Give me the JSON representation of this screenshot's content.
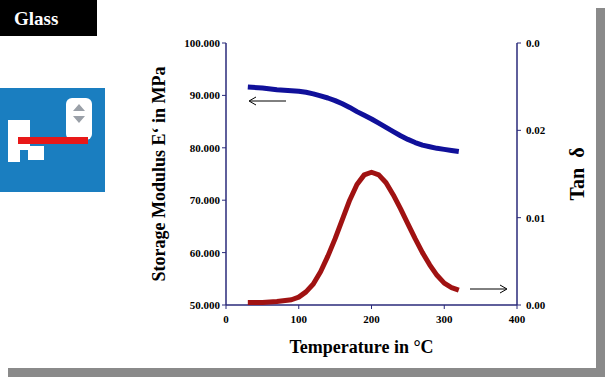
{
  "chart_data": {
    "type": "line",
    "title": "Glass",
    "xlabel": "Temperature in °C",
    "ylabel": "Storage Modulus E‘ in MPa",
    "y2label": "Tan  δ",
    "x": [
      30,
      50,
      70,
      90,
      100,
      110,
      120,
      130,
      140,
      150,
      160,
      170,
      180,
      190,
      200,
      210,
      220,
      230,
      240,
      250,
      260,
      270,
      280,
      290,
      300,
      310,
      320
    ],
    "series": [
      {
        "color": "#10109a",
        "axis": "y",
        "line_style": "solid",
        "values": [
          91600,
          91400,
          91100,
          90900,
          90800,
          90600,
          90300,
          89900,
          89500,
          89000,
          88400,
          87700,
          86900,
          86200,
          85500,
          84700,
          83900,
          83100,
          82300,
          81600,
          81000,
          80500,
          80200,
          79900,
          79700,
          79500,
          79300
        ]
      },
      {
        "color": "#a01212",
        "axis": "y2",
        "line_style": "solid",
        "values": [
          0.0003,
          0.0003,
          0.0004,
          0.0006,
          0.0009,
          0.0015,
          0.0024,
          0.0038,
          0.0056,
          0.0076,
          0.0098,
          0.012,
          0.0138,
          0.0149,
          0.0152,
          0.0149,
          0.014,
          0.0126,
          0.011,
          0.0093,
          0.0076,
          0.006,
          0.0046,
          0.0034,
          0.0025,
          0.002,
          0.0017
        ]
      }
    ],
    "xlim": [
      0,
      400
    ],
    "xticks": [
      0,
      100,
      200,
      300,
      400
    ],
    "ylim": [
      50000,
      100000
    ],
    "yticks": [
      {
        "value": 50000,
        "label": "50.000"
      },
      {
        "value": 60000,
        "label": "60.000"
      },
      {
        "value": 70000,
        "label": "70.000"
      },
      {
        "value": 80000,
        "label": "80.000"
      },
      {
        "value": 90000,
        "label": "90.000"
      },
      {
        "value": 100000,
        "label": "100.000"
      }
    ],
    "y2lim": [
      0,
      0.03
    ],
    "y2ticks": [
      {
        "value": 0,
        "label": "0.00"
      },
      0.01,
      0.02,
      {
        "value": 0.03,
        "label": "0.0"
      }
    ],
    "grid": false
  }
}
